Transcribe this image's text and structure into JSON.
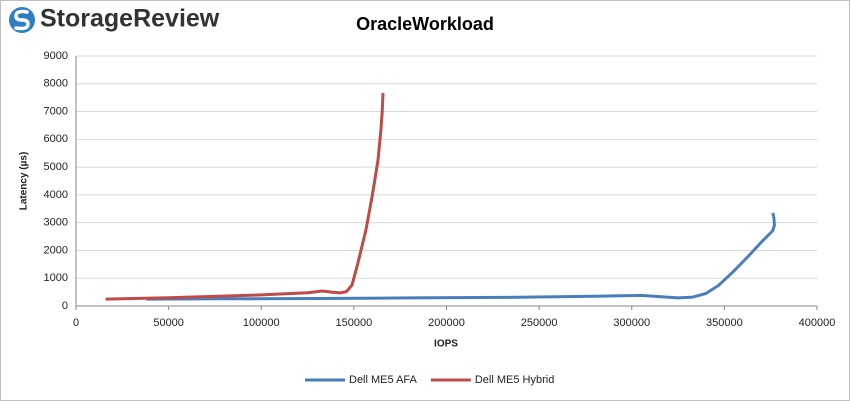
{
  "logo": "StorageReview",
  "chart_data": {
    "type": "line",
    "title": "OracleWorkload",
    "x_label": "IOPS",
    "y_label": "Latency (µs)",
    "xlim": [
      0,
      400000
    ],
    "xticks": [
      0,
      50000,
      100000,
      150000,
      200000,
      250000,
      300000,
      350000,
      400000
    ],
    "ylim": [
      0,
      9000
    ],
    "yticks": [
      0,
      1000,
      2000,
      3000,
      4000,
      5000,
      6000,
      7000,
      8000,
      9000
    ],
    "grid": true,
    "legend": "bottom",
    "series": [
      {
        "name": "Dell ME5 AFA",
        "color": "#4a7ebb",
        "x": [
          38000,
          80000,
          130000,
          180000,
          230000,
          280000,
          305000,
          315000,
          325000,
          333000,
          340000,
          347000,
          355000,
          363000,
          370000,
          376000,
          377000,
          376800,
          376200
        ],
        "values": [
          250,
          260,
          270,
          290,
          310,
          350,
          380,
          340,
          290,
          320,
          450,
          750,
          1250,
          1800,
          2300,
          2700,
          2900,
          3150,
          3350
        ]
      },
      {
        "name": "Dell ME5 Hybrid",
        "color": "#be4b48",
        "x": [
          16000,
          50000,
          100000,
          125000,
          133000,
          138000,
          142500,
          146000,
          149000,
          152000,
          156500,
          160000,
          163000,
          164600,
          165300,
          165700
        ],
        "values": [
          250,
          300,
          400,
          480,
          540,
          500,
          470,
          520,
          756,
          1500,
          2736,
          4000,
          5256,
          6336,
          7000,
          7668
        ]
      }
    ]
  }
}
